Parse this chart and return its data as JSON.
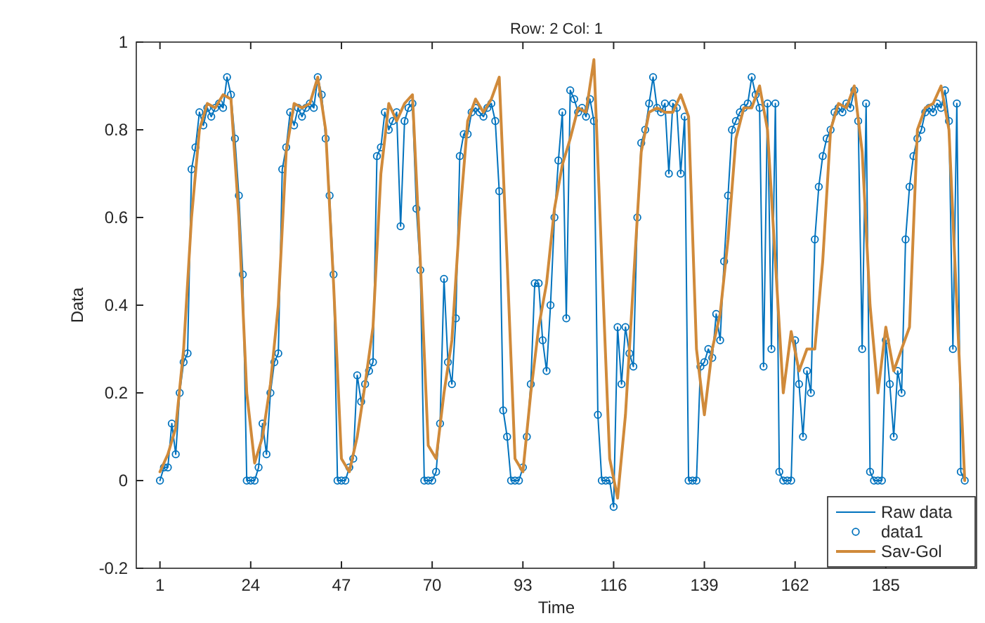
{
  "chart_data": {
    "type": "line",
    "title": "Row: 2  Col: 1",
    "xlabel": "Time",
    "ylabel": "Data",
    "xlim": [
      -5,
      208
    ],
    "xticks": [
      1,
      24,
      47,
      70,
      93,
      116,
      139,
      162,
      185
    ],
    "ylim": [
      -0.2,
      1
    ],
    "yticks": [
      -0.2,
      0,
      0.2,
      0.4,
      0.6,
      0.8,
      1
    ],
    "legend": "bottom right",
    "grid": false,
    "line_style": "solid",
    "series": [
      {
        "name": "Raw data",
        "marker": "none",
        "color": "#0072bd",
        "x": [
          1,
          2,
          3,
          4,
          5,
          6,
          7,
          8,
          9,
          10,
          11,
          12,
          13,
          14,
          15,
          16,
          17,
          18,
          19,
          20,
          21,
          22,
          23,
          24,
          25,
          26,
          27,
          28,
          29,
          30,
          31,
          32,
          33,
          34,
          35,
          36,
          37,
          38,
          39,
          40,
          41,
          42,
          43,
          44,
          45,
          46,
          47,
          48,
          49,
          50,
          51,
          52,
          53,
          54,
          55,
          56,
          57,
          58,
          59,
          60,
          61,
          62,
          63,
          64,
          65,
          66,
          67,
          68,
          69,
          70,
          71,
          72,
          73,
          74,
          75,
          76,
          77,
          78,
          79,
          80,
          81,
          82,
          83,
          84,
          85,
          86,
          87,
          88,
          89,
          90,
          91,
          92,
          93,
          94,
          95,
          96,
          97,
          98,
          99,
          100,
          101,
          102,
          103,
          104,
          105,
          106,
          107,
          108,
          109,
          110,
          111,
          112,
          113,
          114,
          115,
          116,
          117,
          118,
          119,
          120,
          121,
          122,
          123,
          124,
          125,
          126,
          127,
          128,
          129,
          130,
          131,
          132,
          133,
          134,
          135,
          136,
          137,
          138,
          139,
          140,
          141,
          142,
          143,
          144,
          145,
          146,
          147,
          148,
          149,
          150,
          151,
          152,
          153,
          154,
          155,
          156,
          157,
          158,
          159,
          160,
          161,
          162,
          163,
          164,
          165,
          166,
          167,
          168,
          169,
          170,
          171,
          172,
          173,
          174,
          175,
          176,
          177,
          178,
          179,
          180,
          181,
          182,
          183,
          184,
          185,
          186,
          187,
          188,
          189,
          190,
          191,
          192,
          193,
          194,
          195,
          196,
          197,
          198,
          199,
          200,
          201,
          202,
          203,
          204,
          205
        ],
        "values": [
          0,
          0.03,
          0.03,
          0.13,
          0.06,
          0.2,
          0.27,
          0.29,
          0.71,
          0.76,
          0.84,
          0.81,
          0.85,
          0.83,
          0.85,
          0.86,
          0.85,
          0.92,
          0.88,
          0.78,
          0.65,
          0.47,
          0,
          0,
          0,
          0.03,
          0.13,
          0.06,
          0.2,
          0.27,
          0.29,
          0.71,
          0.76,
          0.84,
          0.81,
          0.85,
          0.83,
          0.85,
          0.86,
          0.85,
          0.92,
          0.88,
          0.78,
          0.65,
          0.47,
          0,
          0,
          0,
          0.03,
          0.05,
          0.24,
          0.18,
          0.22,
          0.25,
          0.27,
          0.74,
          0.76,
          0.84,
          0.8,
          0.82,
          0.84,
          0.58,
          0.82,
          0.85,
          0.86,
          0.62,
          0.48,
          0,
          0,
          0,
          0.02,
          0.13,
          0.46,
          0.27,
          0.22,
          0.37,
          0.74,
          0.79,
          0.79,
          0.84,
          0.85,
          0.84,
          0.83,
          0.85,
          0.86,
          0.82,
          0.66,
          0.16,
          0.1,
          0,
          0,
          0,
          0.03,
          0.1,
          0.22,
          0.45,
          0.45,
          0.32,
          0.25,
          0.4,
          0.6,
          0.73,
          0.84,
          0.37,
          0.89,
          0.87,
          0.84,
          0.85,
          0.83,
          0.87,
          0.82,
          0.15,
          0,
          0,
          0,
          -0.06,
          0.35,
          0.22,
          0.35,
          0.29,
          0.26,
          0.6,
          0.77,
          0.8,
          0.86,
          0.92,
          0.85,
          0.84,
          0.86,
          0.7,
          0.86,
          0.85,
          0.7,
          0.83,
          0,
          0,
          0,
          0.26,
          0.27,
          0.3,
          0.28,
          0.38,
          0.32,
          0.5,
          0.65,
          0.8,
          0.82,
          0.84,
          0.85,
          0.86,
          0.92,
          0.88,
          0.85,
          0.26,
          0.86,
          0.3,
          0.86,
          0.02,
          0,
          0,
          0,
          0.32,
          0.22,
          0.1,
          0.25,
          0.2,
          0.55,
          0.67,
          0.74,
          0.78,
          0.8,
          0.84,
          0.85,
          0.84,
          0.86,
          0.85,
          0.89,
          0.82,
          0.3,
          0.86,
          0.02,
          0,
          0,
          0,
          0.32,
          0.22,
          0.1,
          0.25,
          0.2,
          0.55,
          0.67,
          0.74,
          0.78,
          0.8,
          0.84,
          0.85,
          0.84,
          0.86,
          0.85,
          0.89,
          0.82,
          0.3,
          0.86,
          0.02,
          0
        ]
      },
      {
        "name": "data1",
        "type": "scatter",
        "marker": "circle",
        "color": "#0072bd",
        "x": [
          1,
          2,
          3,
          4,
          5,
          6,
          7,
          8,
          9,
          10,
          11,
          12,
          13,
          14,
          15,
          16,
          17,
          18,
          19,
          20,
          21,
          22,
          23,
          24,
          25,
          26,
          27,
          28,
          29,
          30,
          31,
          32,
          33,
          34,
          35,
          36,
          37,
          38,
          39,
          40,
          41,
          42,
          43,
          44,
          45,
          46,
          47,
          48,
          49,
          50,
          51,
          52,
          53,
          54,
          55,
          56,
          57,
          58,
          59,
          60,
          61,
          62,
          63,
          64,
          65,
          66,
          67,
          68,
          69,
          70,
          71,
          72,
          73,
          74,
          75,
          76,
          77,
          78,
          79,
          80,
          81,
          82,
          83,
          84,
          85,
          86,
          87,
          88,
          89,
          90,
          91,
          92,
          93,
          94,
          95,
          96,
          97,
          98,
          99,
          100,
          101,
          102,
          103,
          104,
          105,
          106,
          107,
          108,
          109,
          110,
          111,
          112,
          113,
          114,
          115,
          116,
          117,
          118,
          119,
          120,
          121,
          122,
          123,
          124,
          125,
          126,
          127,
          128,
          129,
          130,
          131,
          132,
          133,
          134,
          135,
          136,
          137,
          138,
          139,
          140,
          141,
          142,
          143,
          144,
          145,
          146,
          147,
          148,
          149,
          150,
          151,
          152,
          153,
          154,
          155,
          156,
          157,
          158,
          159,
          160,
          161,
          162,
          163,
          164,
          165,
          166,
          167,
          168,
          169,
          170,
          171,
          172,
          173,
          174,
          175,
          176,
          177,
          178,
          179,
          180,
          181,
          182,
          183,
          184,
          185,
          186,
          187,
          188,
          189,
          190,
          191,
          192,
          193,
          194,
          195,
          196,
          197,
          198,
          199,
          200,
          201,
          202,
          203,
          204,
          205
        ],
        "values": [
          0,
          0.03,
          0.03,
          0.13,
          0.06,
          0.2,
          0.27,
          0.29,
          0.71,
          0.76,
          0.84,
          0.81,
          0.85,
          0.83,
          0.85,
          0.86,
          0.85,
          0.92,
          0.88,
          0.78,
          0.65,
          0.47,
          0,
          0,
          0,
          0.03,
          0.13,
          0.06,
          0.2,
          0.27,
          0.29,
          0.71,
          0.76,
          0.84,
          0.81,
          0.85,
          0.83,
          0.85,
          0.86,
          0.85,
          0.92,
          0.88,
          0.78,
          0.65,
          0.47,
          0,
          0,
          0,
          0.03,
          0.05,
          0.24,
          0.18,
          0.22,
          0.25,
          0.27,
          0.74,
          0.76,
          0.84,
          0.8,
          0.82,
          0.84,
          0.58,
          0.82,
          0.85,
          0.86,
          0.62,
          0.48,
          0,
          0,
          0,
          0.02,
          0.13,
          0.46,
          0.27,
          0.22,
          0.37,
          0.74,
          0.79,
          0.79,
          0.84,
          0.85,
          0.84,
          0.83,
          0.85,
          0.86,
          0.82,
          0.66,
          0.16,
          0.1,
          0,
          0,
          0,
          0.03,
          0.1,
          0.22,
          0.45,
          0.45,
          0.32,
          0.25,
          0.4,
          0.6,
          0.73,
          0.84,
          0.37,
          0.89,
          0.87,
          0.84,
          0.85,
          0.83,
          0.87,
          0.82,
          0.15,
          0,
          0,
          0,
          -0.06,
          0.35,
          0.22,
          0.35,
          0.29,
          0.26,
          0.6,
          0.77,
          0.8,
          0.86,
          0.92,
          0.85,
          0.84,
          0.86,
          0.7,
          0.86,
          0.85,
          0.7,
          0.83,
          0,
          0,
          0,
          0.26,
          0.27,
          0.3,
          0.28,
          0.38,
          0.32,
          0.5,
          0.65,
          0.8,
          0.82,
          0.84,
          0.85,
          0.86,
          0.92,
          0.88,
          0.85,
          0.26,
          0.86,
          0.3,
          0.86,
          0.02,
          0,
          0,
          0,
          0.32,
          0.22,
          0.1,
          0.25,
          0.2,
          0.55,
          0.67,
          0.74,
          0.78,
          0.8,
          0.84,
          0.85,
          0.84,
          0.86,
          0.85,
          0.89,
          0.82,
          0.3,
          0.86,
          0.02,
          0,
          0,
          0,
          0.32,
          0.22,
          0.1,
          0.25,
          0.2,
          0.55,
          0.67,
          0.74,
          0.78,
          0.8,
          0.84,
          0.85,
          0.84,
          0.86,
          0.85,
          0.89,
          0.82,
          0.3,
          0.86,
          0.02,
          0
        ]
      },
      {
        "name": "Sav-Gol",
        "marker": "none",
        "color": "#d08a3a",
        "x": [
          1,
          3,
          5,
          7,
          9,
          11,
          13,
          15,
          17,
          19,
          21,
          23,
          25,
          27,
          29,
          31,
          33,
          35,
          37,
          39,
          41,
          43,
          45,
          47,
          49,
          51,
          53,
          55,
          57,
          59,
          61,
          63,
          65,
          67,
          69,
          71,
          73,
          75,
          77,
          79,
          81,
          83,
          85,
          87,
          89,
          91,
          93,
          95,
          97,
          99,
          101,
          103,
          105,
          107,
          109,
          111,
          113,
          115,
          117,
          119,
          121,
          123,
          125,
          127,
          129,
          131,
          133,
          135,
          137,
          139,
          141,
          143,
          145,
          147,
          149,
          151,
          153,
          155,
          157,
          159,
          161,
          163,
          165,
          167,
          169,
          171,
          173,
          175,
          177,
          179,
          181,
          183,
          185,
          187,
          189,
          191,
          193,
          195,
          197,
          199,
          201,
          203,
          205
        ],
        "values": [
          0.02,
          0.06,
          0.12,
          0.3,
          0.6,
          0.8,
          0.86,
          0.85,
          0.88,
          0.87,
          0.6,
          0.2,
          0.04,
          0.1,
          0.22,
          0.4,
          0.75,
          0.86,
          0.85,
          0.86,
          0.92,
          0.8,
          0.45,
          0.05,
          0.02,
          0.1,
          0.22,
          0.35,
          0.7,
          0.86,
          0.82,
          0.86,
          0.88,
          0.5,
          0.08,
          0.05,
          0.2,
          0.32,
          0.6,
          0.82,
          0.87,
          0.84,
          0.87,
          0.92,
          0.5,
          0.05,
          0.02,
          0.2,
          0.35,
          0.45,
          0.62,
          0.72,
          0.78,
          0.85,
          0.84,
          0.96,
          0.5,
          0.05,
          -0.04,
          0.15,
          0.45,
          0.75,
          0.84,
          0.85,
          0.84,
          0.84,
          0.88,
          0.83,
          0.3,
          0.15,
          0.3,
          0.38,
          0.55,
          0.78,
          0.85,
          0.85,
          0.9,
          0.8,
          0.5,
          0.2,
          0.34,
          0.25,
          0.3,
          0.3,
          0.5,
          0.8,
          0.86,
          0.85,
          0.9,
          0.75,
          0.4,
          0.2,
          0.35,
          0.25,
          0.3,
          0.35,
          0.8,
          0.85,
          0.86,
          0.9,
          0.8,
          0.4,
          0
        ]
      }
    ]
  }
}
